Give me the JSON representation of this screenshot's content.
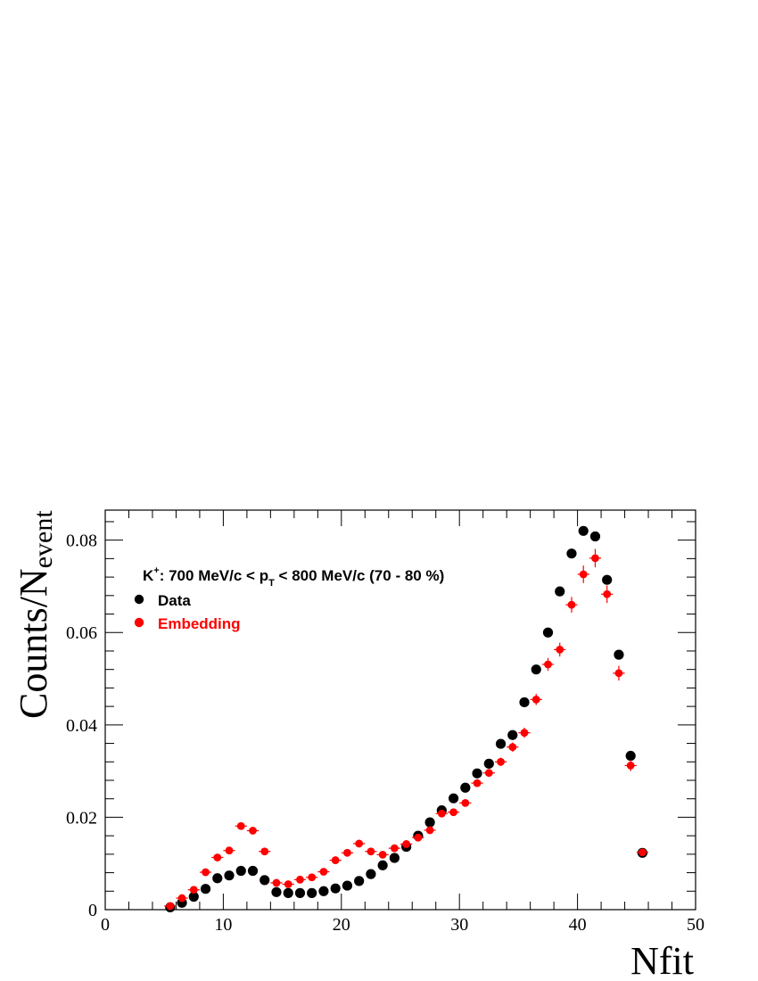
{
  "chart_data": {
    "type": "scatter",
    "xlabel": "Nfit",
    "ylabel_main": "Counts/N",
    "ylabel_sub": "event",
    "xlim": [
      0,
      50
    ],
    "ylim": [
      0,
      0.0865
    ],
    "x_ticks": [
      "0",
      "10",
      "20",
      "30",
      "40",
      "50"
    ],
    "y_ticks": [
      "0",
      "0.02",
      "0.04",
      "0.06",
      "0.08"
    ],
    "grid": false,
    "legend_placement": "top-left",
    "annotation": {
      "prefix": "K",
      "sup": "+",
      "mid": ": 700 MeV/c < p",
      "sub": "T",
      "suffix": " < 800 MeV/c (70 - 80 %)"
    },
    "series": [
      {
        "name": "Data",
        "color": "#000000",
        "x": [
          5.5,
          6.5,
          7.5,
          8.5,
          9.5,
          10.5,
          11.5,
          12.5,
          13.5,
          14.5,
          15.5,
          16.5,
          17.5,
          18.5,
          19.5,
          20.5,
          21.5,
          22.5,
          23.5,
          24.5,
          25.5,
          26.5,
          27.5,
          28.5,
          29.5,
          30.5,
          31.5,
          32.5,
          33.5,
          34.5,
          35.5,
          36.5,
          37.5,
          38.5,
          39.5,
          40.5,
          41.5,
          42.5,
          43.5,
          44.5,
          45.5
        ],
        "y": [
          0.0005,
          0.0015,
          0.0028,
          0.0045,
          0.0068,
          0.0074,
          0.0084,
          0.0084,
          0.0064,
          0.0038,
          0.0036,
          0.0036,
          0.0036,
          0.004,
          0.0046,
          0.0052,
          0.0062,
          0.0077,
          0.0096,
          0.0112,
          0.0136,
          0.016,
          0.0189,
          0.0215,
          0.0241,
          0.0264,
          0.0295,
          0.0316,
          0.0359,
          0.0378,
          0.0449,
          0.052,
          0.06,
          0.0689,
          0.0771,
          0.082,
          0.0808,
          0.0714,
          0.0552,
          0.0333,
          0.0123
        ]
      },
      {
        "name": "Embedding",
        "color": "#ff0000",
        "x": [
          5.5,
          6.5,
          7.5,
          8.5,
          9.5,
          10.5,
          11.5,
          12.5,
          13.5,
          14.5,
          15.5,
          16.5,
          17.5,
          18.5,
          19.5,
          20.5,
          21.5,
          22.5,
          23.5,
          24.5,
          25.5,
          26.5,
          27.5,
          28.5,
          29.5,
          30.5,
          31.5,
          32.5,
          33.5,
          34.5,
          35.5,
          36.5,
          37.5,
          38.5,
          39.5,
          40.5,
          41.5,
          42.5,
          43.5,
          44.5,
          45.5
        ],
        "y": [
          0.0008,
          0.0025,
          0.0043,
          0.0081,
          0.0113,
          0.0128,
          0.0181,
          0.0171,
          0.0126,
          0.0058,
          0.0055,
          0.0065,
          0.007,
          0.0082,
          0.0107,
          0.0123,
          0.0143,
          0.0126,
          0.0119,
          0.0133,
          0.0142,
          0.0156,
          0.0172,
          0.0208,
          0.0211,
          0.0231,
          0.0274,
          0.0296,
          0.032,
          0.0352,
          0.0383,
          0.0455,
          0.0531,
          0.0563,
          0.066,
          0.0726,
          0.0761,
          0.0683,
          0.0512,
          0.0312,
          0.0124
        ],
        "yerr": [
          0.0002,
          0.0002,
          0.0003,
          0.0004,
          0.0004,
          0.0004,
          0.0005,
          0.0005,
          0.0004,
          0.0003,
          0.0003,
          0.0003,
          0.0003,
          0.0004,
          0.0004,
          0.0005,
          0.0005,
          0.0005,
          0.0005,
          0.0005,
          0.0005,
          0.0005,
          0.0006,
          0.0006,
          0.0006,
          0.0007,
          0.0007,
          0.0008,
          0.0009,
          0.001,
          0.0011,
          0.0012,
          0.0014,
          0.0015,
          0.0017,
          0.0019,
          0.002,
          0.0019,
          0.0016,
          0.0012,
          0.0008
        ]
      }
    ]
  }
}
